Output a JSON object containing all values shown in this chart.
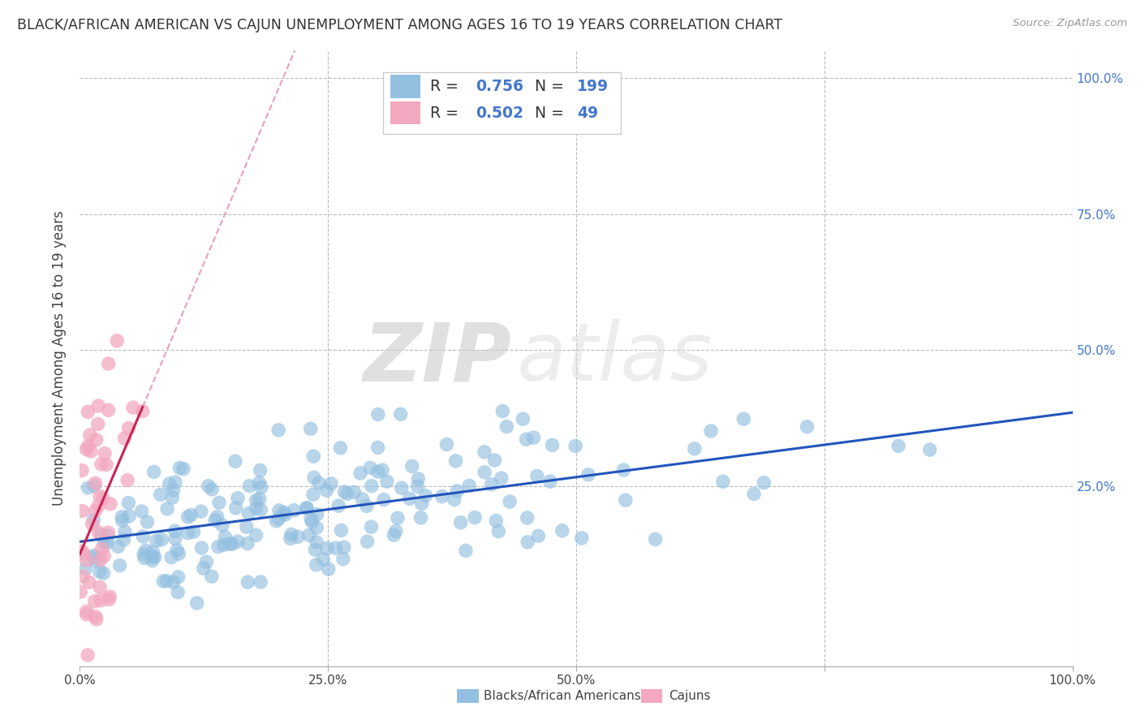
{
  "title": "BLACK/AFRICAN AMERICAN VS CAJUN UNEMPLOYMENT AMONG AGES 16 TO 19 YEARS CORRELATION CHART",
  "source": "Source: ZipAtlas.com",
  "ylabel": "Unemployment Among Ages 16 to 19 years",
  "xlim": [
    0,
    1.0
  ],
  "ylim": [
    -0.08,
    1.05
  ],
  "blue_color": "#92BFE0",
  "pink_color": "#F2A8BE",
  "blue_line_color": "#2255BB",
  "pink_line_color": "#CC2255",
  "pink_dash_color": "#E8A0B8",
  "watermark_zip": "ZIP",
  "watermark_atlas": "atlas",
  "legend_R_blue": "0.756",
  "legend_N_blue": "199",
  "legend_R_pink": "0.502",
  "legend_N_pink": "49",
  "background_color": "#FFFFFF",
  "grid_color": "#BBBBBB",
  "title_fontsize": 12.5,
  "label_fontsize": 12,
  "tick_fontsize": 11,
  "right_tick_color": "#4477CC",
  "ytick_positions": [
    0.25,
    0.5,
    0.75,
    1.0
  ],
  "ytick_labels": [
    "25.0%",
    "50.0%",
    "75.0%",
    "100.0%"
  ],
  "xtick_positions": [
    0.0,
    0.25,
    0.5,
    0.75,
    1.0
  ],
  "xtick_labels": [
    "0.0%",
    "25.0%",
    "50.0%",
    "",
    "100.0%"
  ]
}
